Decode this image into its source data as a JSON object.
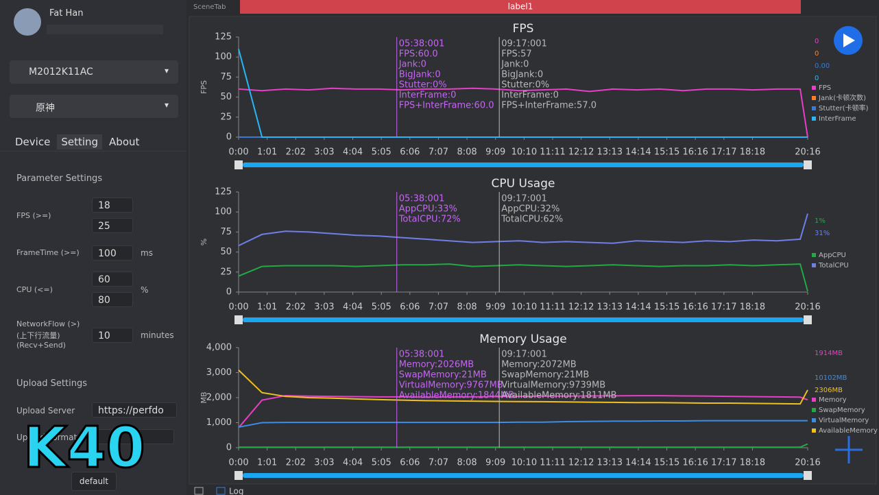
{
  "sidebar": {
    "user": "Fat Han",
    "device": "M2012K11AC",
    "app": "原神",
    "tabs": [
      "Device",
      "Setting",
      "About"
    ],
    "parameter_title": "Parameter Settings",
    "params": [
      {
        "label": "FPS (>=)",
        "values": [
          "18",
          "25"
        ]
      },
      {
        "label": "FrameTime (>=)",
        "values": [
          "100"
        ],
        "unit": "ms"
      },
      {
        "label": "CPU (<=)",
        "values": [
          "60",
          "80"
        ],
        "unit": "%"
      },
      {
        "label": "NetworkFlow (>)",
        "sub": [
          "(上下行流量)",
          "(Recv+Send)"
        ],
        "values": [
          "10"
        ],
        "unit": "minutes"
      }
    ],
    "upload_title": "Upload Settings",
    "upload_server_label": "Upload Server",
    "upload_server": "https://perfdo",
    "upload_format_label": "Upload Format",
    "default_button": "default"
  },
  "overlay": "K40",
  "topbar": {
    "scene_tab": "SceneTab",
    "label": "label1"
  },
  "bottom": {
    "log": "Log"
  },
  "timeline": {
    "xlim": [
      0,
      1216
    ],
    "xticks": [
      {
        "value": 0,
        "label": "0:00"
      },
      {
        "value": 61,
        "label": "1:01"
      },
      {
        "value": 122,
        "label": "2:02"
      },
      {
        "value": 183,
        "label": "3:03"
      },
      {
        "value": 244,
        "label": "4:04"
      },
      {
        "value": 305,
        "label": "5:05"
      },
      {
        "value": 366,
        "label": "6:06"
      },
      {
        "value": 427,
        "label": "7:07"
      },
      {
        "value": 488,
        "label": "8:08"
      },
      {
        "value": 549,
        "label": "9:09"
      },
      {
        "value": 610,
        "label": "10:10"
      },
      {
        "value": 671,
        "label": "11:11"
      },
      {
        "value": 732,
        "label": "12:12"
      },
      {
        "value": 793,
        "label": "13:13"
      },
      {
        "value": 854,
        "label": "14:14"
      },
      {
        "value": 915,
        "label": "15:15"
      },
      {
        "value": 976,
        "label": "16:16"
      },
      {
        "value": 1037,
        "label": "17:17"
      },
      {
        "value": 1098,
        "label": "18:18"
      },
      {
        "value": 1216,
        "label": "20:16"
      }
    ],
    "x": [
      0,
      50,
      100,
      150,
      200,
      250,
      300,
      350,
      400,
      450,
      500,
      550,
      600,
      650,
      700,
      750,
      800,
      850,
      900,
      950,
      1000,
      1050,
      1100,
      1150,
      1200,
      1216
    ]
  },
  "charts": [
    {
      "type": "line",
      "title": "FPS",
      "ylabel": "FPS",
      "ylim": [
        0,
        125
      ],
      "yticks": [
        0,
        25,
        50,
        75,
        100,
        125
      ],
      "series": [
        {
          "name": "FPS",
          "color": "#e83ec8",
          "values": [
            60,
            58,
            60,
            59,
            61,
            60,
            60,
            59,
            60,
            60,
            61,
            60,
            58,
            59,
            60,
            57,
            60,
            59,
            60,
            58,
            60,
            60,
            59,
            60,
            60,
            0
          ]
        },
        {
          "name": "Jank(卡顿次数)",
          "color": "#ff7f27",
          "values": [
            0,
            0,
            0,
            0,
            0,
            0,
            0,
            0,
            0,
            0,
            0,
            0,
            0,
            0,
            0,
            0,
            0,
            0,
            0,
            0,
            0,
            0,
            0,
            0,
            0,
            0
          ]
        },
        {
          "name": "Stutter(卡顿率)",
          "color": "#3a7bd5",
          "values": [
            0,
            0,
            0,
            0,
            0,
            0,
            0,
            0,
            0,
            0,
            0,
            0,
            0,
            0,
            0,
            0,
            0,
            0,
            0,
            0,
            0,
            0,
            0,
            0,
            0,
            0
          ]
        },
        {
          "name": "InterFrame",
          "color": "#29b6f6",
          "values": [
            110,
            0,
            0,
            0,
            0,
            0,
            0,
            0,
            0,
            0,
            0,
            0,
            0,
            0,
            0,
            0,
            0,
            0,
            0,
            0,
            0,
            0,
            0,
            0,
            0,
            0
          ]
        }
      ],
      "current_labels": [
        "0",
        "0",
        "0.00",
        "0"
      ],
      "cursors": [
        {
          "x": 338,
          "lines": [
            "05:38:001",
            "FPS:60.0",
            "Jank:0",
            "BigJank:0",
            "Stutter:0%",
            "InterFrame:0",
            "FPS+InterFrame:60.0"
          ]
        },
        {
          "x": 557,
          "lines": [
            "09:17:001",
            "FPS:57",
            "Jank:0",
            "BigJank:0",
            "Stutter:0%",
            "InterFrame:0",
            "FPS+InterFrame:57.0"
          ]
        }
      ]
    },
    {
      "type": "line",
      "title": "CPU Usage",
      "ylabel": "%",
      "ylim": [
        0,
        125
      ],
      "yticks": [
        0,
        25,
        50,
        75,
        100,
        125
      ],
      "series": [
        {
          "name": "AppCPU",
          "color": "#22aa44",
          "values": [
            20,
            32,
            33,
            33,
            33,
            32,
            33,
            34,
            34,
            35,
            32,
            33,
            34,
            33,
            32,
            33,
            34,
            33,
            32,
            33,
            33,
            34,
            33,
            34,
            35,
            1
          ]
        },
        {
          "name": "TotalCPU",
          "color": "#6f7fe8",
          "values": [
            58,
            72,
            76,
            75,
            73,
            71,
            70,
            68,
            66,
            64,
            62,
            63,
            64,
            62,
            63,
            62,
            61,
            64,
            63,
            62,
            64,
            63,
            65,
            64,
            66,
            98
          ]
        }
      ],
      "current_labels": [
        "1%",
        "31%"
      ],
      "cursors": [
        {
          "x": 338,
          "lines": [
            "05:38:001",
            "AppCPU:33%",
            "TotalCPU:72%"
          ]
        },
        {
          "x": 557,
          "lines": [
            "09:17:001",
            "AppCPU:32%",
            "TotalCPU:62%"
          ]
        }
      ]
    },
    {
      "type": "line",
      "title": "Memory Usage",
      "ylabel": "MB",
      "ylim": [
        0,
        4000
      ],
      "yticks": [
        0,
        {
          "value": 1000,
          "label": "1,000"
        },
        {
          "value": 2000,
          "label": "2,000"
        },
        {
          "value": 3000,
          "label": "3,000"
        },
        {
          "value": 4000,
          "label": "4,000"
        }
      ],
      "series": [
        {
          "name": "Memory",
          "color": "#e83ec8",
          "values": [
            800,
            1900,
            2080,
            2060,
            2050,
            2040,
            2030,
            2030,
            2020,
            2026,
            2030,
            2040,
            2050,
            2060,
            2060,
            2070,
            2072,
            2080,
            2080,
            2070,
            2060,
            2050,
            2040,
            2030,
            2020,
            1914
          ]
        },
        {
          "name": "SwapMemory",
          "color": "#22aa44",
          "values": [
            21,
            21,
            21,
            21,
            21,
            21,
            21,
            21,
            21,
            21,
            21,
            21,
            21,
            21,
            21,
            21,
            21,
            21,
            21,
            21,
            21,
            21,
            21,
            21,
            21,
            150
          ]
        },
        {
          "name": "VirtualMemory",
          "color": "#3a8ee8",
          "values": [
            820,
            1000,
            1010,
            1010,
            1010,
            1010,
            1010,
            1010,
            1010,
            1010,
            1010,
            1010,
            1020,
            1020,
            1040,
            1050,
            1060,
            1060,
            1070,
            1070,
            1080,
            1080,
            1080,
            1080,
            1080,
            1080
          ]
        },
        {
          "name": "AvailableMemory",
          "color": "#f0c020",
          "values": [
            3100,
            2200,
            2050,
            2000,
            1980,
            1950,
            1920,
            1900,
            1880,
            1870,
            1860,
            1850,
            1844,
            1840,
            1830,
            1820,
            1811,
            1800,
            1800,
            1790,
            1780,
            1780,
            1770,
            1760,
            1750,
            2306
          ]
        }
      ],
      "current_labels": [
        "1914MB",
        "",
        "10102MB",
        "2306MB"
      ],
      "cursors": [
        {
          "x": 338,
          "lines": [
            "05:38:001",
            "Memory:2026MB",
            "SwapMemory:21MB",
            "VirtualMemory:9767MB",
            "AvailableMemory:1844MB"
          ]
        },
        {
          "x": 557,
          "lines": [
            "09:17:001",
            "Memory:2072MB",
            "SwapMemory:21MB",
            "VirtualMemory:9739MB",
            "AvailableMemory:1811MB"
          ]
        }
      ]
    }
  ]
}
